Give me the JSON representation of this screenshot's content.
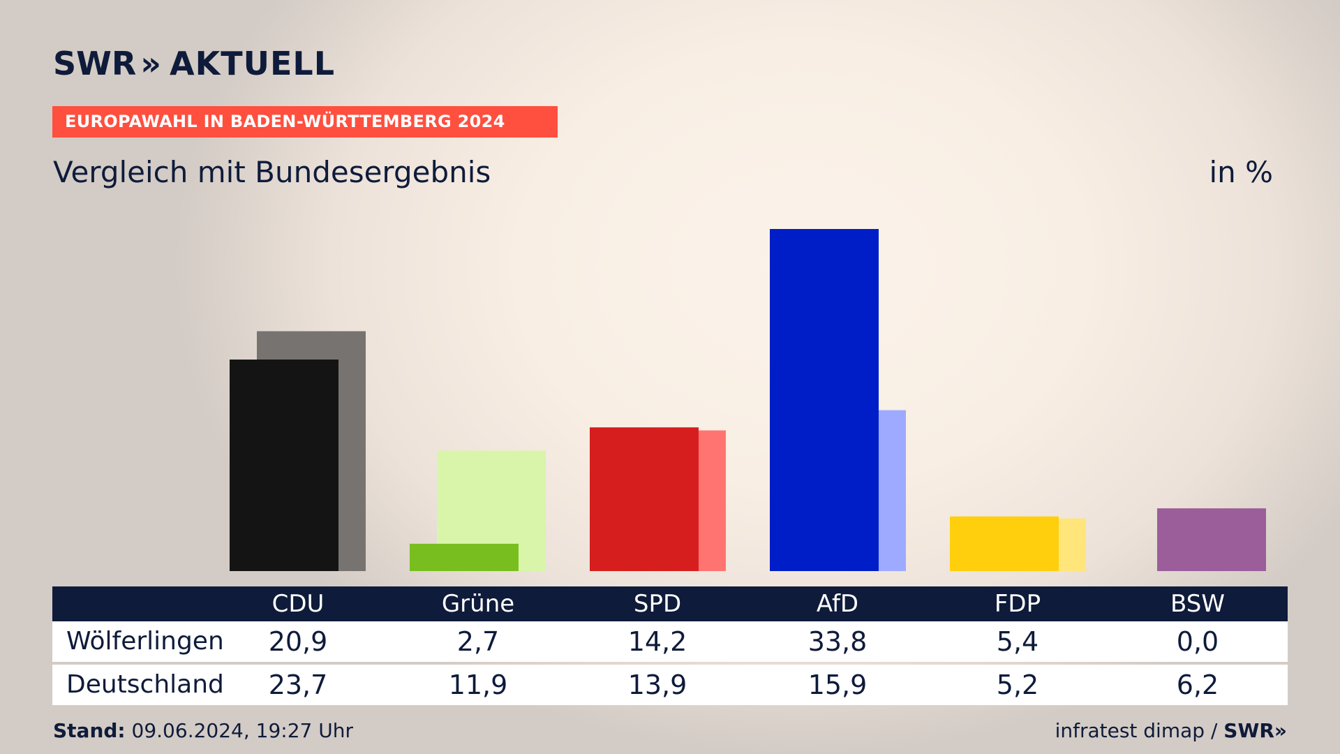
{
  "logo": {
    "main": "SWR",
    "arrows": "»",
    "sub": "AKTUELL"
  },
  "banner": "EUROPAWAHL IN BADEN-WÜRTTEMBERG 2024",
  "subtitle": "Vergleich mit Bundesergebnis",
  "unit": "in %",
  "table": {
    "parties": [
      "CDU",
      "Grüne",
      "SPD",
      "AfD",
      "FDP",
      "BSW"
    ],
    "rows": [
      {
        "label": "Wölferlingen",
        "values": [
          "20,9",
          "2,7",
          "14,2",
          "33,8",
          "5,4",
          "0,0"
        ]
      },
      {
        "label": "Deutschland",
        "values": [
          "23,7",
          "11,9",
          "13,9",
          "15,9",
          "5,2",
          "6,2"
        ]
      }
    ]
  },
  "footer": {
    "stand_label": "Stand:",
    "stand_value": "09.06.2024, 19:27 Uhr",
    "source": "infratest dimap /",
    "brand": "SWR»"
  },
  "colors": {
    "CDU": [
      "#141414",
      "#767370"
    ],
    "Grüne": [
      "#78be1e",
      "#d8f5aa"
    ],
    "SPD": [
      "#d61e1e",
      "#ff7470"
    ],
    "AfD": [
      "#001ec8",
      "#9eaaff"
    ],
    "FDP": [
      "#ffcf0d",
      "#ffe57a"
    ],
    "BSW": [
      "#9b5e9a",
      "#9b5e9a"
    ]
  },
  "chart_data": {
    "type": "bar",
    "categories": [
      "CDU",
      "Grüne",
      "SPD",
      "AfD",
      "FDP",
      "BSW"
    ],
    "series": [
      {
        "name": "Wölferlingen",
        "values": [
          20.9,
          2.7,
          14.2,
          33.8,
          5.4,
          0.0
        ]
      },
      {
        "name": "Deutschland",
        "values": [
          23.7,
          11.9,
          13.9,
          15.9,
          5.2,
          6.2
        ]
      }
    ],
    "ylim": [
      0,
      33.8
    ]
  }
}
